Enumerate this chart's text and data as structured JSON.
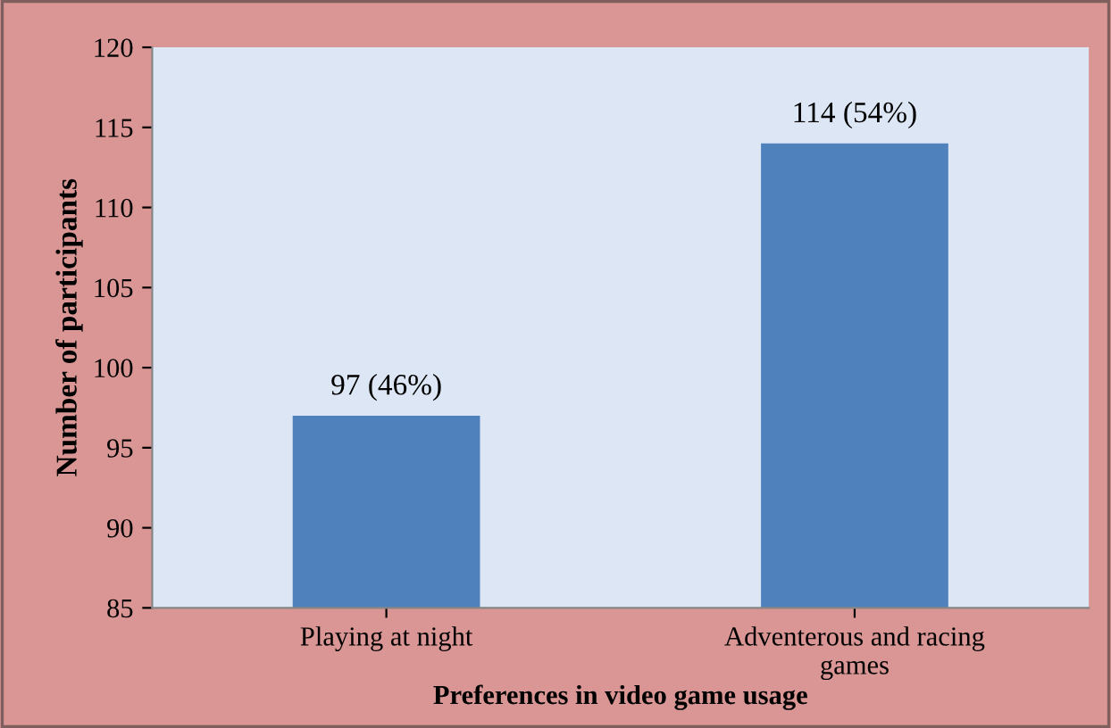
{
  "chart_data": {
    "type": "bar",
    "xlabel": "Preferences in video game usage",
    "ylabel": "Number of participants",
    "categories": [
      "Playing at night",
      "Adventerous and racing games"
    ],
    "values": [
      97,
      114
    ],
    "color": "#4f81bd",
    "value_labels": [
      "97 (46%)",
      "114 (54%)"
    ],
    "ylim": [
      85,
      120
    ],
    "yticks": [
      85,
      90,
      95,
      100,
      105,
      110,
      115,
      120
    ],
    "grid": false
  }
}
